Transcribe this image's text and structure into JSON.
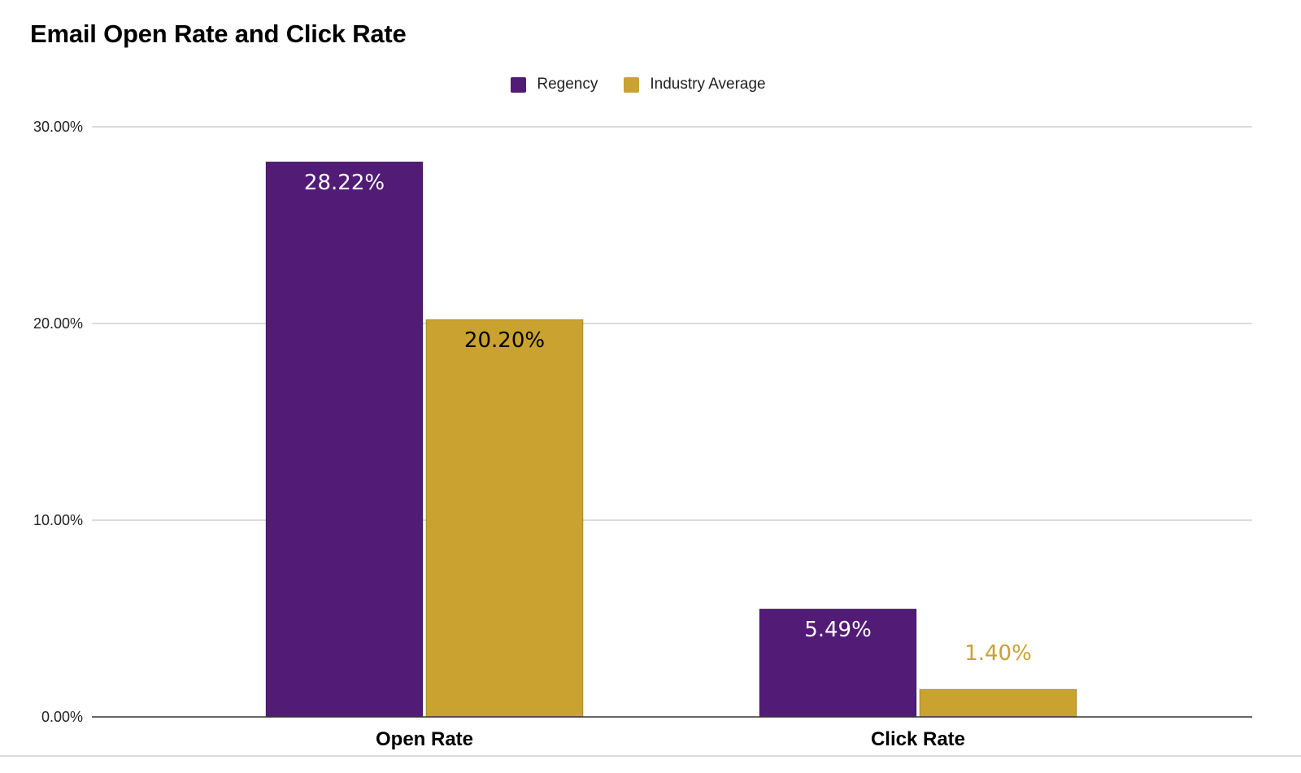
{
  "chart_data": {
    "type": "bar",
    "title": "Email Open Rate and Click Rate",
    "categories": [
      "Open Rate",
      "Click Rate"
    ],
    "series": [
      {
        "name": "Regency",
        "color": "#521c76",
        "values": [
          28.22,
          5.49
        ],
        "labels": [
          "28.22%",
          "5.49%"
        ],
        "label_colors": [
          "#ffffff",
          "#ffffff"
        ]
      },
      {
        "name": "Industry Average",
        "color": "#c9a22f",
        "values": [
          20.2,
          1.4
        ],
        "labels": [
          "20.20%",
          "1.40%"
        ],
        "label_colors": [
          "#000000",
          "#c9a22f"
        ]
      }
    ],
    "ylim": [
      0,
      30
    ],
    "yticks": [
      0,
      10,
      20,
      30
    ],
    "ytick_labels": [
      "0.00%",
      "10.00%",
      "20.00%",
      "30.00%"
    ],
    "xlabel": "",
    "ylabel": "",
    "grid": true,
    "legend_position": "top-center"
  }
}
